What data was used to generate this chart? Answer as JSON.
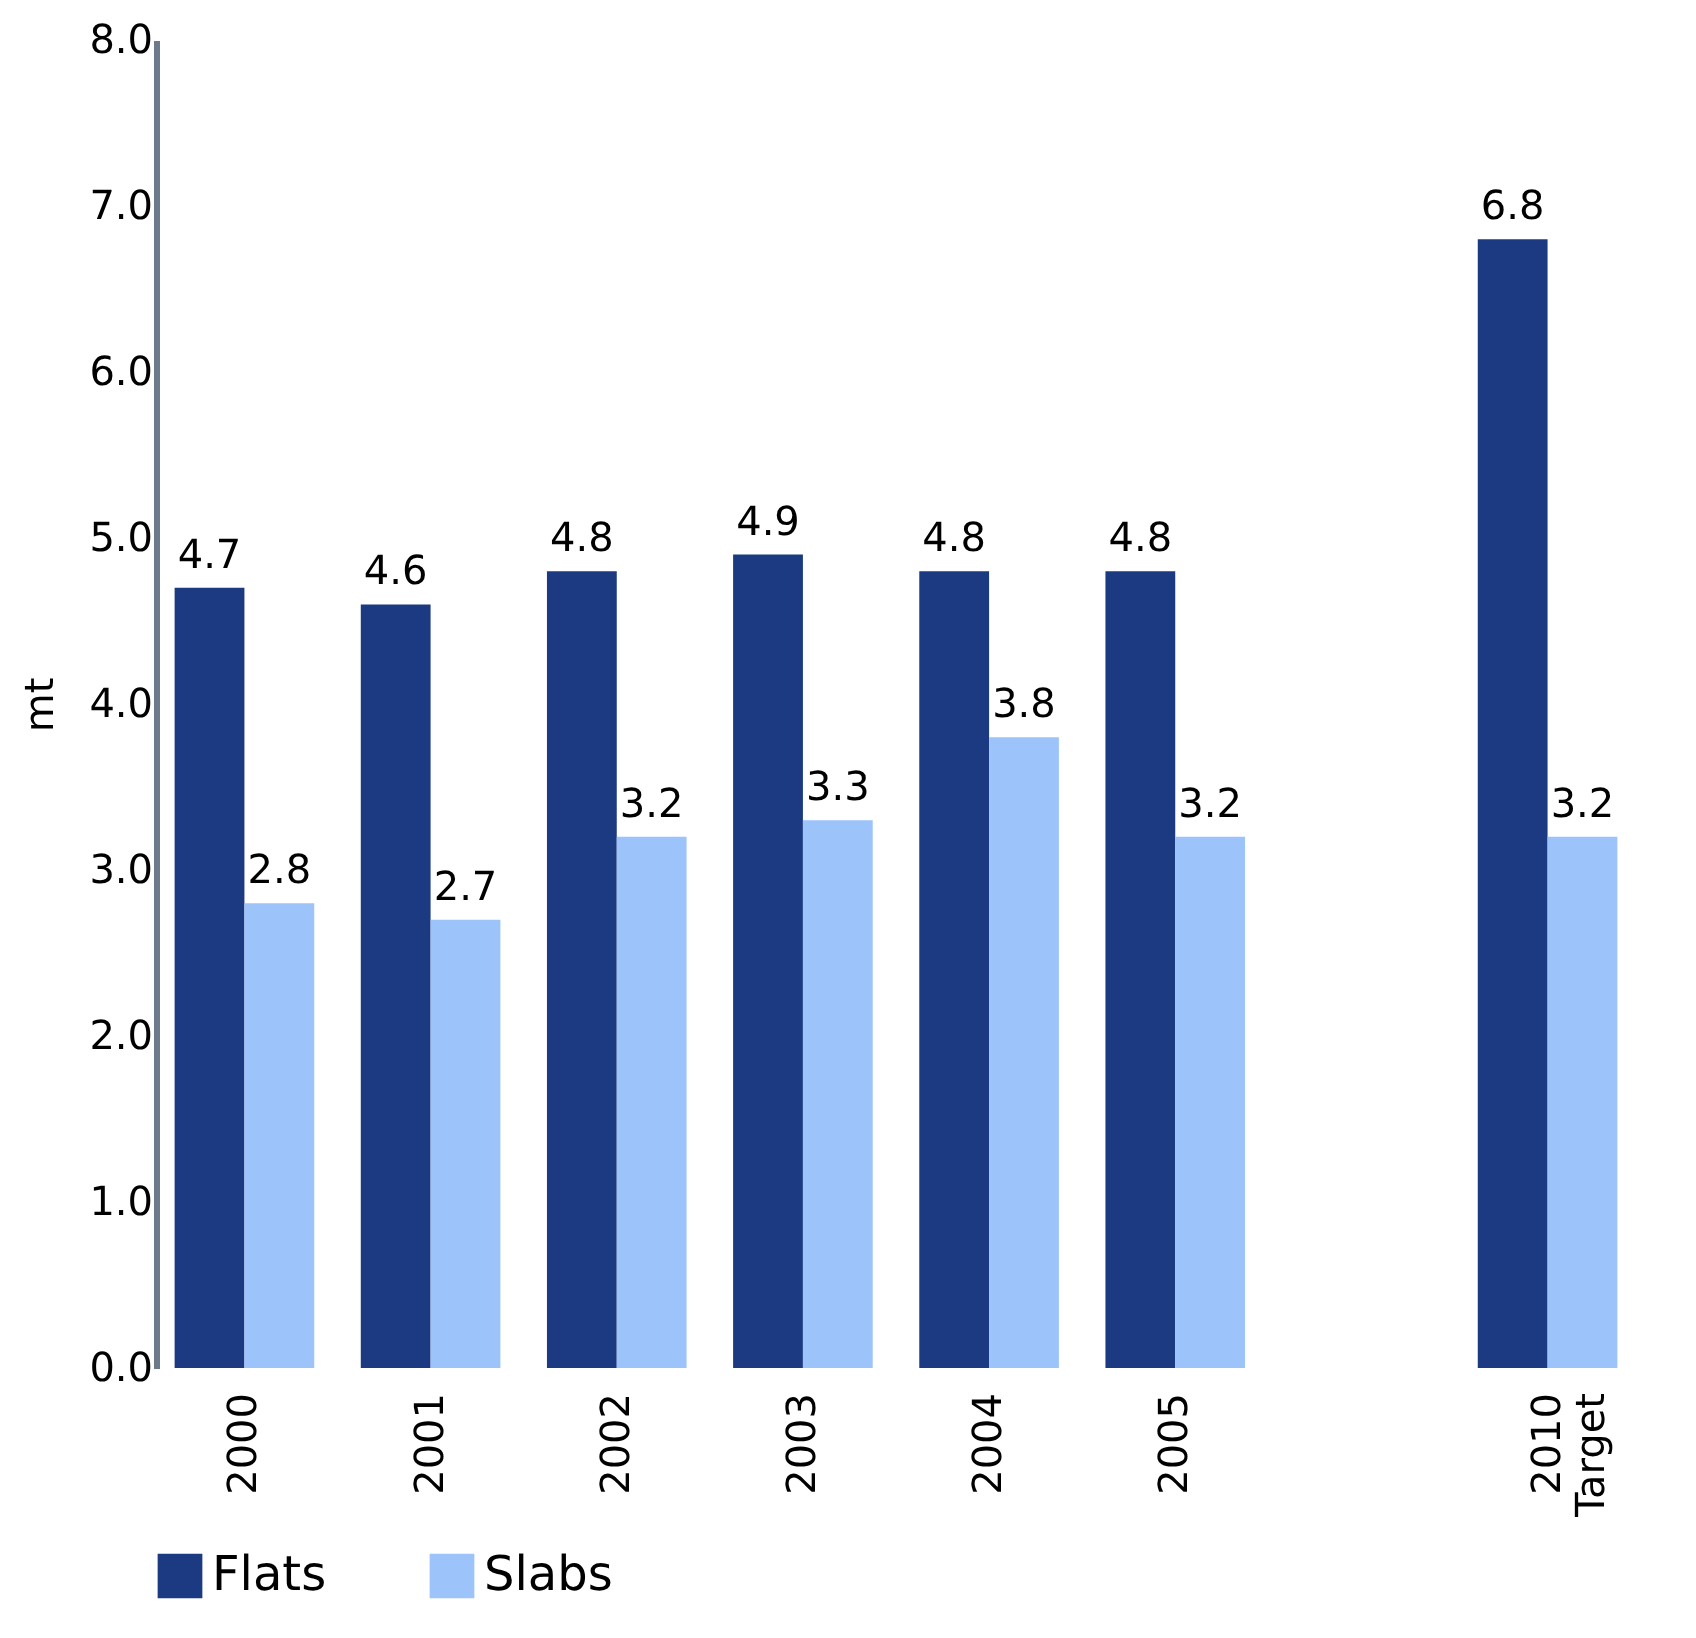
{
  "chart_data": {
    "type": "bar",
    "ylabel": "mt",
    "categories": [
      "2000",
      "2001",
      "2002",
      "2003",
      "2004",
      "2005",
      null,
      "2010 Target"
    ],
    "series": [
      {
        "name": "Flats",
        "color": "#1b3a82",
        "values": [
          4.7,
          4.6,
          4.8,
          4.9,
          4.8,
          4.8,
          null,
          6.8
        ]
      },
      {
        "name": "Slabs",
        "color": "#9dc3fb",
        "values": [
          2.8,
          2.7,
          3.2,
          3.3,
          3.8,
          3.2,
          null,
          3.2
        ]
      }
    ],
    "ylim": [
      0,
      8
    ],
    "yticks": [
      {
        "value": 0,
        "label": "0.0"
      },
      {
        "value": 1,
        "label": "1.0"
      },
      {
        "value": 2,
        "label": "2.0"
      },
      {
        "value": 3,
        "label": "3.0"
      },
      {
        "value": 4,
        "label": "4.0"
      },
      {
        "value": 5,
        "label": "5.0"
      },
      {
        "value": 6,
        "label": "6.0"
      },
      {
        "value": 7,
        "label": "7.0"
      },
      {
        "value": 8,
        "label": "8.0"
      }
    ],
    "data_labels": true,
    "grid": false,
    "legend": "bottom"
  }
}
